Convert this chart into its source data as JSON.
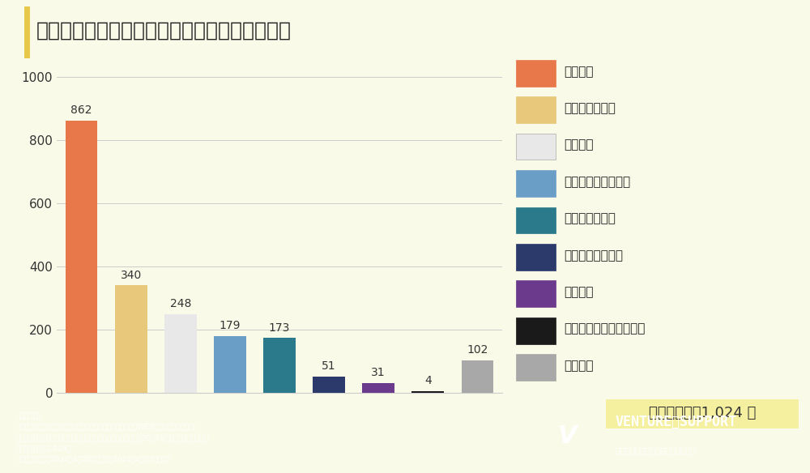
{
  "title": "老後の収入源を教えてください（複数回答可）",
  "categories": [
    "公的年金",
    "自身の金融資産",
    "私的年金",
    "投資などの不労所得",
    "就労による収入",
    "親など家族の遺産",
    "生活保護",
    "子どもなどからの仕送り",
    "特にない"
  ],
  "values": [
    862,
    340,
    248,
    179,
    173,
    51,
    31,
    4,
    102
  ],
  "colors": [
    "#E8784A",
    "#E8C87A",
    "#E8E8E8",
    "#6B9EC7",
    "#2B7A8C",
    "#2B3A6B",
    "#6B3A8C",
    "#1A1A1A",
    "#A8A8A8"
  ],
  "bg_color": "#FAFAE8",
  "footer_color": "#2B4A7A",
  "ylim": [
    0,
    1050
  ],
  "yticks": [
    0,
    200,
    400,
    600,
    800,
    1000
  ],
  "valid_responses": "有効回答数：1,024 人",
  "footer_lines": [
    "＜調査概要＞",
    "・調査方法：ゼネラルリサーチ株式会社のモニターを利用したWEBアンケート方式で実施",
    "・調査の対象：ゼネラルリサーチ社登録モニターのうち、全国の30～70代の男女を対象に実施",
    "・有効回答数：1,024人",
    "・調査実施期間：2024年4月26日（金）～2024年4月27日（土）"
  ],
  "accent_color": "#E8C84A",
  "title_left_bar_color": "#E8C84A"
}
